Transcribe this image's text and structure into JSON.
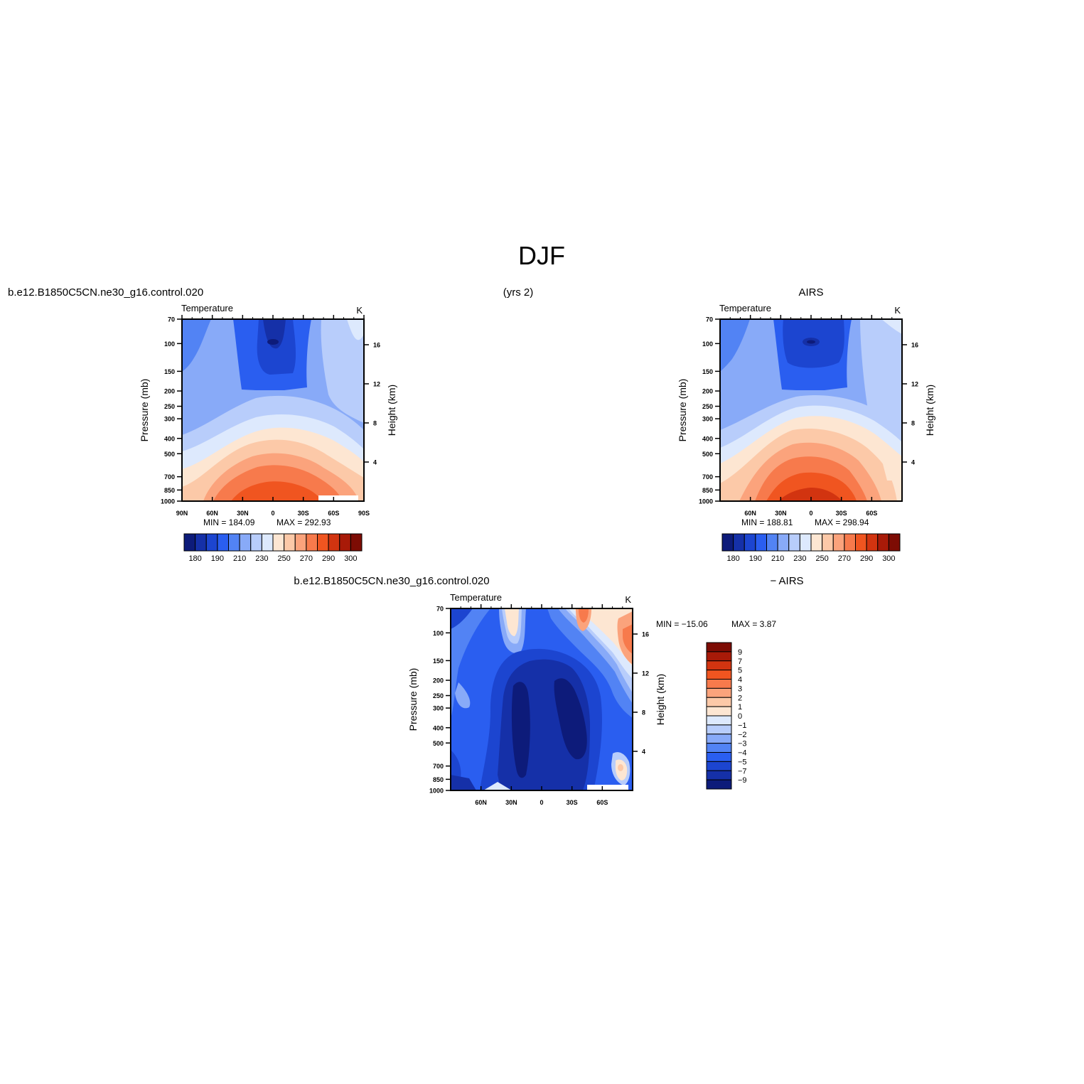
{
  "figure": {
    "title": "DJF",
    "row1_left_header": "b.e12.B1850C5CN.ne30_g16.control.020",
    "row1_center_header": "(yrs 2)",
    "row1_right_header": "AIRS",
    "row2_left_header": "b.e12.B1850C5CN.ne30_g16.control.020",
    "row2_right_header": "− AIRS"
  },
  "chart_data": [
    {
      "type": "heatmap",
      "title": "Temperature",
      "units": "K",
      "ylabel": "Pressure  (mb)",
      "ylabel_right": "Height  (km)",
      "y_ticks": [
        "70",
        "100",
        "150",
        "200",
        "250",
        "300",
        "400",
        "500",
        "700",
        "850",
        "1000"
      ],
      "y_right_ticks": [
        "16",
        "12",
        "8",
        "4"
      ],
      "x_ticks": [
        "90N",
        "60N",
        "30N",
        "0",
        "30S",
        "60S",
        "90S"
      ],
      "min_text": "MIN  =  184.09",
      "max_text": "MAX  =  292.93",
      "min": 184.09,
      "max": 292.93,
      "colorbar_ticks": [
        "180",
        "190",
        "210",
        "230",
        "250",
        "270",
        "290",
        "300"
      ],
      "levels": [
        180,
        185,
        190,
        200,
        210,
        220,
        230,
        240,
        250,
        260,
        270,
        280,
        290,
        295,
        300
      ],
      "colors": [
        "#0d1b7a",
        "#1530a8",
        "#1c45d0",
        "#2a5ef0",
        "#5283f4",
        "#88aaf8",
        "#b8cdfb",
        "#dde9fd",
        "#fde6d2",
        "#fcc9a8",
        "#fba37c",
        "#f77a4c",
        "#f05520",
        "#d23410",
        "#a81a08",
        "#7d0c04"
      ]
    },
    {
      "type": "heatmap",
      "title": "Temperature",
      "units": "K",
      "ylabel": "Pressure  (mb)",
      "ylabel_right": "Height  (km)",
      "y_ticks": [
        "70",
        "100",
        "150",
        "200",
        "250",
        "300",
        "400",
        "500",
        "700",
        "850",
        "1000"
      ],
      "y_right_ticks": [
        "16",
        "12",
        "8",
        "4"
      ],
      "x_ticks": [
        "60N",
        "30N",
        "0",
        "30S",
        "60S"
      ],
      "min_text": "MIN  =  188.81",
      "max_text": "MAX  =  298.94",
      "min": 188.81,
      "max": 298.94,
      "colorbar_ticks": [
        "180",
        "190",
        "210",
        "230",
        "250",
        "270",
        "290",
        "300"
      ],
      "levels": [
        180,
        185,
        190,
        200,
        210,
        220,
        230,
        240,
        250,
        260,
        270,
        280,
        290,
        295,
        300
      ],
      "colors": [
        "#0d1b7a",
        "#1530a8",
        "#1c45d0",
        "#2a5ef0",
        "#5283f4",
        "#88aaf8",
        "#b8cdfb",
        "#dde9fd",
        "#fde6d2",
        "#fcc9a8",
        "#fba37c",
        "#f77a4c",
        "#f05520",
        "#d23410",
        "#a81a08",
        "#7d0c04"
      ]
    },
    {
      "type": "heatmap",
      "title": "Temperature",
      "units": "K",
      "ylabel": "Pressure  (mb)",
      "ylabel_right": "Height  (km)",
      "y_ticks": [
        "70",
        "100",
        "150",
        "200",
        "250",
        "300",
        "400",
        "500",
        "700",
        "850",
        "1000"
      ],
      "y_right_ticks": [
        "16",
        "12",
        "8",
        "4"
      ],
      "x_ticks": [
        "60N",
        "30N",
        "0",
        "30S",
        "60S"
      ],
      "min_text": "MIN  =  −15.06",
      "max_text": "MAX  =     3.87",
      "min": -15.06,
      "max": 3.87,
      "colorbar_ticks": [
        "9",
        "7",
        "5",
        "4",
        "3",
        "2",
        "1",
        "0",
        "−1",
        "−2",
        "−3",
        "−4",
        "−5",
        "−7",
        "−9"
      ],
      "levels": [
        -9,
        -7,
        -5,
        -4,
        -3,
        -2,
        -1,
        0,
        1,
        2,
        3,
        4,
        5,
        7,
        9
      ],
      "colors": [
        "#0d1b7a",
        "#1530a8",
        "#1c45d0",
        "#2a5ef0",
        "#5283f4",
        "#88aaf8",
        "#b8cdfb",
        "#dde9fd",
        "#fde6d2",
        "#fcc9a8",
        "#fba37c",
        "#f77a4c",
        "#f05520",
        "#d23410",
        "#a81a08",
        "#7d0c04"
      ]
    }
  ]
}
